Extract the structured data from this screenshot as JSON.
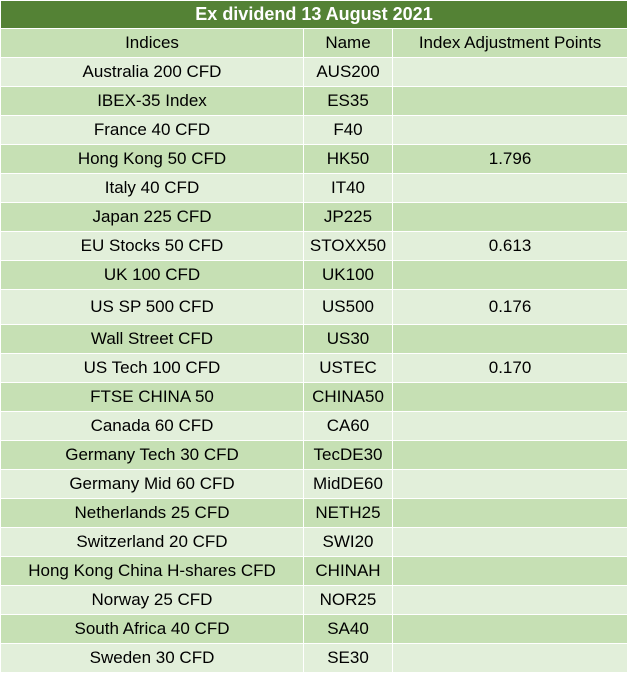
{
  "title": "Ex dividend 13 August 2021",
  "headers": [
    "Indices",
    "Name",
    "Index Adjustment Points"
  ],
  "rows": [
    {
      "index": "Australia 200 CFD",
      "name": "AUS200",
      "points": ""
    },
    {
      "index": "IBEX-35 Index",
      "name": "ES35",
      "points": ""
    },
    {
      "index": "France 40 CFD",
      "name": "F40",
      "points": ""
    },
    {
      "index": "Hong Kong 50 CFD",
      "name": "HK50",
      "points": "1.796"
    },
    {
      "index": "Italy 40 CFD",
      "name": "IT40",
      "points": ""
    },
    {
      "index": "Japan 225 CFD",
      "name": "JP225",
      "points": ""
    },
    {
      "index": "EU Stocks 50 CFD",
      "name": "STOXX50",
      "points": "0.613"
    },
    {
      "index": "UK 100 CFD",
      "name": "UK100",
      "points": ""
    },
    {
      "index": "US SP 500 CFD",
      "name": "US500",
      "points": "0.176"
    },
    {
      "index": "Wall Street CFD",
      "name": "US30",
      "points": ""
    },
    {
      "index": "US Tech 100 CFD",
      "name": "USTEC",
      "points": "0.170"
    },
    {
      "index": "FTSE CHINA 50",
      "name": "CHINA50",
      "points": ""
    },
    {
      "index": "Canada 60 CFD",
      "name": "CA60",
      "points": ""
    },
    {
      "index": "Germany Tech 30 CFD",
      "name": "TecDE30",
      "points": ""
    },
    {
      "index": "Germany Mid 60 CFD",
      "name": "MidDE60",
      "points": ""
    },
    {
      "index": "Netherlands 25 CFD",
      "name": "NETH25",
      "points": ""
    },
    {
      "index": "Switzerland 20 CFD",
      "name": "SWI20",
      "points": ""
    },
    {
      "index": "Hong Kong China H-shares CFD",
      "name": "CHINAH",
      "points": ""
    },
    {
      "index": "Norway 25 CFD",
      "name": "NOR25",
      "points": ""
    },
    {
      "index": "South Africa 40 CFD",
      "name": "SA40",
      "points": ""
    },
    {
      "index": "Sweden 30 CFD",
      "name": "SE30",
      "points": ""
    }
  ],
  "colors": {
    "title_bg": "#548235",
    "dark_row": "#c6e0b4",
    "light_row": "#e2efda"
  }
}
